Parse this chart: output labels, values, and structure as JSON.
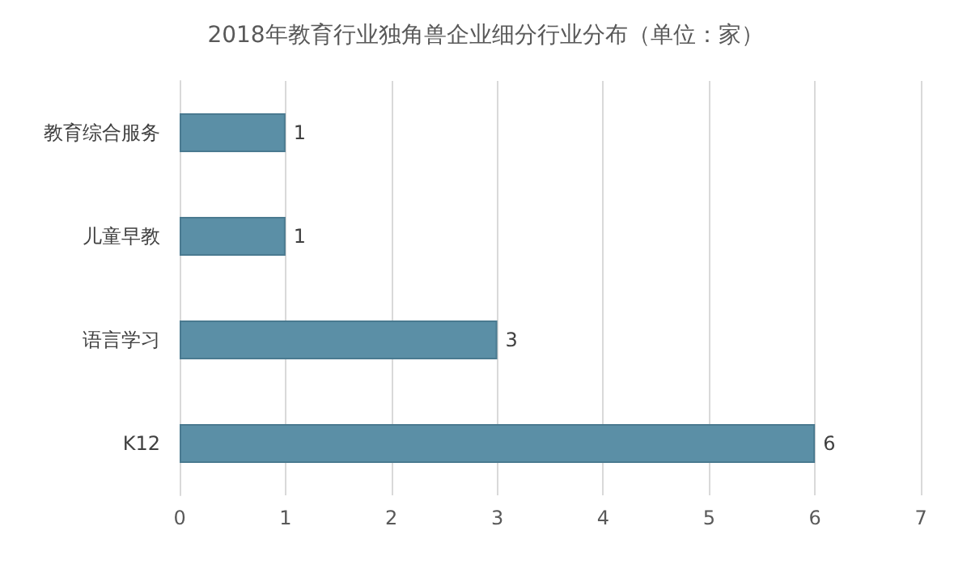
{
  "chart_data": {
    "type": "bar",
    "orientation": "horizontal",
    "title": "2018年教育行业独角兽企业细分行业分布（单位：家）",
    "categories": [
      "教育综合服务",
      "儿童早教",
      "语言学习",
      "K12"
    ],
    "values": [
      1,
      1,
      3,
      6
    ],
    "color": "#5b8fa6",
    "xlim": [
      0,
      7
    ],
    "xticks": [
      0,
      1,
      2,
      3,
      4,
      5,
      6,
      7
    ],
    "grid": "x",
    "data_labels": true
  }
}
